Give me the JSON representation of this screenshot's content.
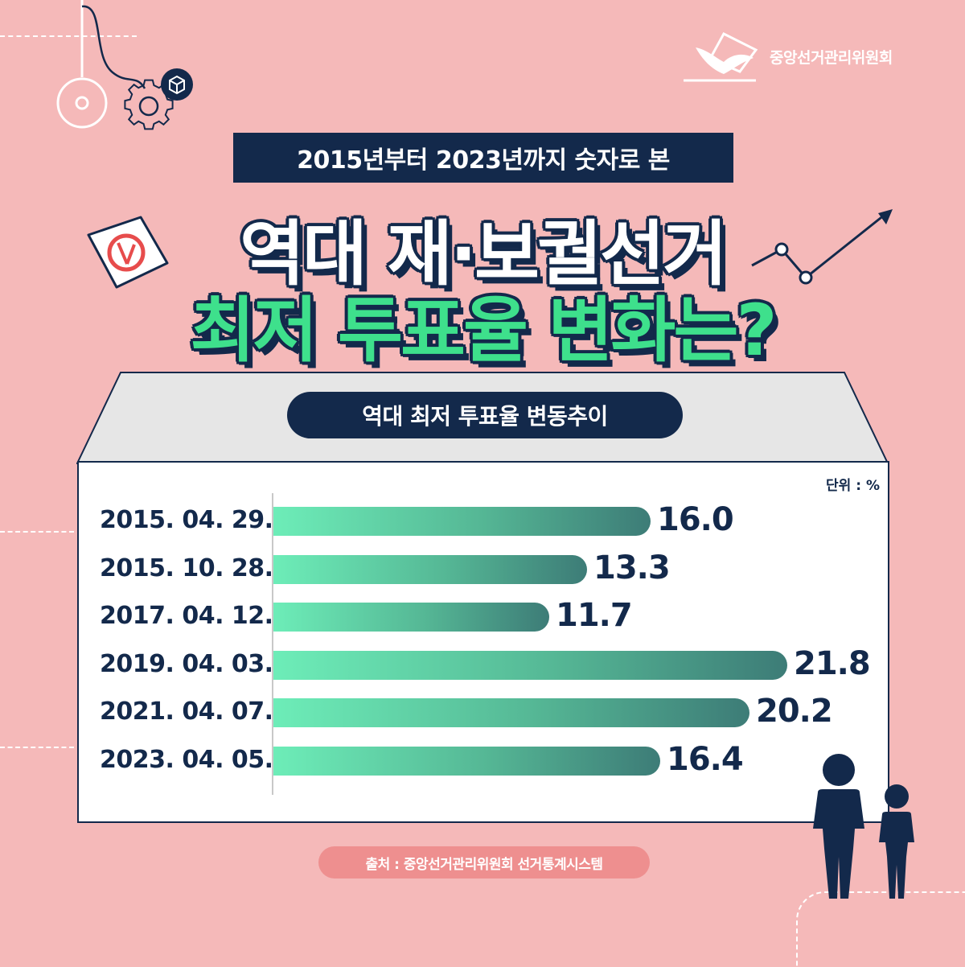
{
  "org": {
    "name": "중앙선거관리위원회"
  },
  "header": {
    "subtitle": "2015년부터 2023년까지 숫자로 본",
    "title_line1": "역대 재·보궐선거",
    "title_line2": "최저 투표율 변화는?"
  },
  "chart_data": {
    "type": "bar",
    "orientation": "horizontal",
    "title": "역대 최저 투표율 변동추이",
    "unit_label": "단위 : %",
    "categories": [
      "2015. 04. 29.",
      "2015. 10. 28.",
      "2017. 04. 12.",
      "2019. 04. 03.",
      "2021. 04. 07.",
      "2023. 04. 05."
    ],
    "values": [
      16.0,
      13.3,
      11.7,
      21.8,
      20.2,
      16.4
    ],
    "value_labels": [
      "16.0",
      "13.3",
      "11.7",
      "21.8",
      "20.2",
      "16.4"
    ],
    "grid": false,
    "legend": "none"
  },
  "source": {
    "text": "출처 : 중앙선거관리위원회 선거통계시스템"
  },
  "colors": {
    "background": "#f5b9b9",
    "navy": "#13294b",
    "accent_green": "#3ee08c",
    "bar_start": "#6dedb8",
    "bar_end": "#3d7c77",
    "source_pill": "#ee8f8f"
  },
  "icons": [
    "gear-icon",
    "cube-icon",
    "ballot-icon",
    "trend-arrow-icon",
    "people-icon",
    "dove-logo-icon"
  ]
}
